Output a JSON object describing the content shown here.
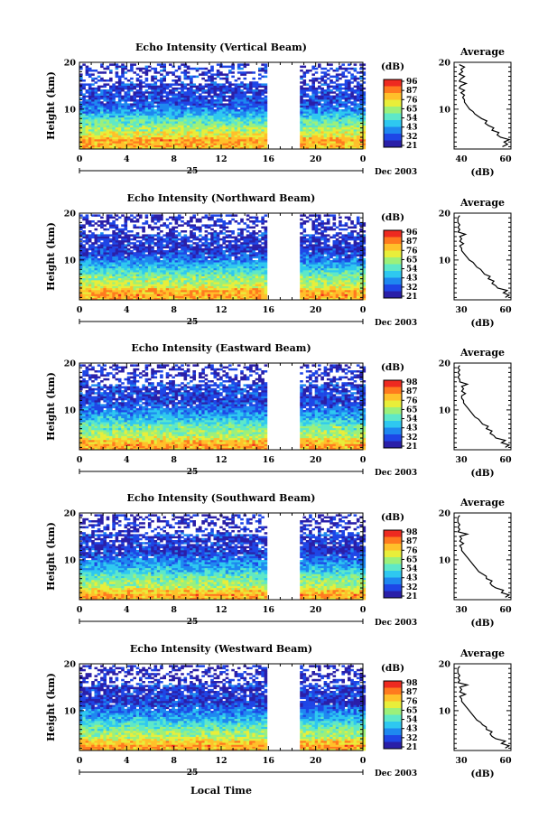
{
  "figure": {
    "date_label": "Dec 2003",
    "day_label": "25",
    "xaxis_title": "Local Time",
    "height_label": "Height (km)",
    "colorbar_unit": "(dB)",
    "profile_title": "Average",
    "profile_xlabel": "(dB)",
    "colors": {
      "gap": "#ffffff",
      "axis": "#000000"
    },
    "colormap": [
      "#2a1fa8",
      "#1e46e6",
      "#1e88f0",
      "#2ec8f0",
      "#5ee8c8",
      "#9cf07a",
      "#e8ee3a",
      "#ffc02a",
      "#ff7a1e",
      "#ee2a20"
    ]
  },
  "chart_data": [
    {
      "type": "heatmap",
      "title": "Echo Intensity (Vertical Beam)",
      "x": {
        "label": "Local Time",
        "range": [
          0,
          24
        ],
        "ticks": [
          "0",
          "4",
          "8",
          "12",
          "16",
          "20",
          "0"
        ],
        "data_gap": [
          15.8,
          18.7
        ]
      },
      "y": {
        "label": "Height (km)",
        "range": [
          1.5,
          20
        ],
        "ticks": [
          "10",
          "20"
        ]
      },
      "colorbar": {
        "unit": "(dB)",
        "ticks": [
          "96",
          "87",
          "76",
          "65",
          "54",
          "43",
          "32",
          "21"
        ]
      },
      "profile": {
        "title": "Average",
        "xlabel": "(dB)",
        "xrange": [
          30,
          63
        ],
        "xticks": [
          "40",
          "60"
        ],
        "yticks": [
          "10",
          "20"
        ],
        "heights": [
          2,
          2.5,
          3,
          3.5,
          4,
          4.5,
          5,
          5.5,
          6,
          6.5,
          7,
          7.5,
          8,
          8.5,
          9,
          9.5,
          10,
          10.5,
          11,
          11.5,
          12,
          12.5,
          13,
          13.5,
          14,
          14.5,
          15,
          15.5,
          16,
          16.5,
          17,
          17.5,
          18,
          18.5,
          19,
          19.5
        ],
        "values": [
          58,
          61,
          59,
          62,
          57,
          55,
          56,
          52,
          53,
          50,
          48,
          49,
          46,
          44,
          42,
          41,
          39,
          38,
          37,
          36,
          36,
          35,
          36,
          34,
          36,
          33,
          34,
          37,
          33,
          34,
          36,
          33,
          35,
          34,
          36,
          33
        ]
      }
    },
    {
      "type": "heatmap",
      "title": "Echo Intensity (Northward Beam)",
      "x": {
        "label": "Local Time",
        "range": [
          0,
          24
        ],
        "ticks": [
          "0",
          "4",
          "8",
          "12",
          "16",
          "20",
          "0"
        ],
        "data_gap": [
          15.8,
          18.7
        ]
      },
      "y": {
        "label": "Height (km)",
        "range": [
          1.5,
          20
        ],
        "ticks": [
          "10",
          "20"
        ]
      },
      "colorbar": {
        "unit": "(dB)",
        "ticks": [
          "96",
          "87",
          "76",
          "65",
          "54",
          "43",
          "32",
          "21"
        ]
      },
      "profile": {
        "title": "Average",
        "xlabel": "(dB)",
        "xrange": [
          30,
          60
        ],
        "xticks": [
          "30",
          "60"
        ],
        "yticks": [
          "10",
          "20"
        ],
        "heights": [
          2,
          2.5,
          3,
          3.5,
          4,
          4.5,
          5,
          5.5,
          6,
          6.5,
          7,
          7.5,
          8,
          8.5,
          9,
          9.5,
          10,
          10.5,
          11,
          11.5,
          12,
          12.5,
          13,
          13.5,
          14,
          14.5,
          15,
          15.5,
          16,
          16.5,
          17,
          17.5,
          18,
          18.5,
          19,
          19.5
        ],
        "values": [
          57,
          59,
          56,
          58,
          53,
          52,
          50,
          51,
          48,
          49,
          46,
          45,
          44,
          42,
          41,
          40,
          38,
          37,
          36,
          35,
          34,
          34,
          33,
          35,
          33,
          34,
          33,
          36,
          32,
          33,
          32,
          33,
          32,
          32,
          32,
          33
        ]
      }
    },
    {
      "type": "heatmap",
      "title": "Echo Intensity (Eastward Beam)",
      "x": {
        "label": "Local Time",
        "range": [
          0,
          24
        ],
        "ticks": [
          "0",
          "4",
          "8",
          "12",
          "16",
          "20",
          "0"
        ],
        "data_gap": [
          15.8,
          18.7
        ]
      },
      "y": {
        "label": "Height (km)",
        "range": [
          1.5,
          20
        ],
        "ticks": [
          "10",
          "20"
        ]
      },
      "colorbar": {
        "unit": "(dB)",
        "ticks": [
          "98",
          "87",
          "76",
          "65",
          "54",
          "43",
          "32",
          "21"
        ]
      },
      "profile": {
        "title": "Average",
        "xlabel": "(dB)",
        "xrange": [
          30,
          60
        ],
        "xticks": [
          "30",
          "60"
        ],
        "yticks": [
          "10",
          "20"
        ],
        "heights": [
          2,
          2.5,
          3,
          3.5,
          4,
          4.5,
          5,
          5.5,
          6,
          6.5,
          7,
          7.5,
          8,
          8.5,
          9,
          9.5,
          10,
          10.5,
          11,
          11.5,
          12,
          12.5,
          13,
          13.5,
          14,
          14.5,
          15,
          15.5,
          16,
          16.5,
          17,
          17.5,
          18,
          18.5,
          19,
          19.5
        ],
        "values": [
          57,
          59,
          55,
          57,
          52,
          51,
          49,
          50,
          47,
          48,
          45,
          44,
          43,
          41,
          40,
          39,
          38,
          37,
          36,
          35,
          35,
          34,
          34,
          36,
          34,
          35,
          34,
          37,
          33,
          33,
          32,
          33,
          32,
          33,
          32,
          33
        ]
      }
    },
    {
      "type": "heatmap",
      "title": "Echo Intensity (Southward Beam)",
      "x": {
        "label": "Local Time",
        "range": [
          0,
          24
        ],
        "ticks": [
          "0",
          "4",
          "8",
          "12",
          "16",
          "20",
          "0"
        ],
        "data_gap": [
          15.8,
          18.7
        ]
      },
      "y": {
        "label": "Height (km)",
        "range": [
          1.5,
          20
        ],
        "ticks": [
          "10",
          "20"
        ]
      },
      "colorbar": {
        "unit": "(dB)",
        "ticks": [
          "98",
          "87",
          "76",
          "65",
          "54",
          "43",
          "32",
          "21"
        ]
      },
      "profile": {
        "title": "Average",
        "xlabel": "(dB)",
        "xrange": [
          30,
          60
        ],
        "xticks": [
          "30",
          "60"
        ],
        "yticks": [
          "10",
          "20"
        ],
        "heights": [
          2,
          2.5,
          3,
          3.5,
          4,
          4.5,
          5,
          5.5,
          6,
          6.5,
          7,
          7.5,
          8,
          8.5,
          9,
          9.5,
          10,
          10.5,
          11,
          11.5,
          12,
          12.5,
          13,
          13.5,
          14,
          14.5,
          15,
          15.5,
          16,
          16.5,
          17,
          17.5,
          18,
          18.5,
          19,
          19.5
        ],
        "values": [
          57,
          59,
          55,
          56,
          52,
          50,
          49,
          50,
          47,
          47,
          45,
          43,
          42,
          41,
          40,
          39,
          38,
          37,
          36,
          35,
          34,
          34,
          33,
          35,
          33,
          34,
          33,
          37,
          32,
          33,
          32,
          33,
          32,
          32,
          32,
          33
        ]
      }
    },
    {
      "type": "heatmap",
      "title": "Echo Intensity (Westward Beam)",
      "x": {
        "label": "Local Time",
        "range": [
          0,
          24
        ],
        "ticks": [
          "0",
          "4",
          "8",
          "12",
          "16",
          "20",
          "0"
        ],
        "data_gap": [
          15.8,
          18.7
        ]
      },
      "y": {
        "label": "Height (km)",
        "range": [
          1.5,
          20
        ],
        "ticks": [
          "10",
          "20"
        ]
      },
      "colorbar": {
        "unit": "(dB)",
        "ticks": [
          "98",
          "87",
          "76",
          "65",
          "54",
          "43",
          "32",
          "21"
        ]
      },
      "profile": {
        "title": "Average",
        "xlabel": "(dB)",
        "xrange": [
          30,
          60
        ],
        "xticks": [
          "30",
          "60"
        ],
        "yticks": [
          "10",
          "20"
        ],
        "heights": [
          2,
          2.5,
          3,
          3.5,
          4,
          4.5,
          5,
          5.5,
          6,
          6.5,
          7,
          7.5,
          8,
          8.5,
          9,
          9.5,
          10,
          10.5,
          11,
          11.5,
          12,
          12.5,
          13,
          13.5,
          14,
          14.5,
          15,
          15.5,
          16,
          16.5,
          17,
          17.5,
          18,
          18.5,
          19,
          19.5
        ],
        "values": [
          57,
          59,
          55,
          57,
          52,
          50,
          49,
          50,
          47,
          47,
          45,
          44,
          42,
          41,
          40,
          39,
          38,
          37,
          36,
          35,
          34,
          34,
          33,
          36,
          33,
          34,
          33,
          37,
          32,
          33,
          32,
          33,
          32,
          32,
          32,
          33
        ]
      }
    }
  ]
}
